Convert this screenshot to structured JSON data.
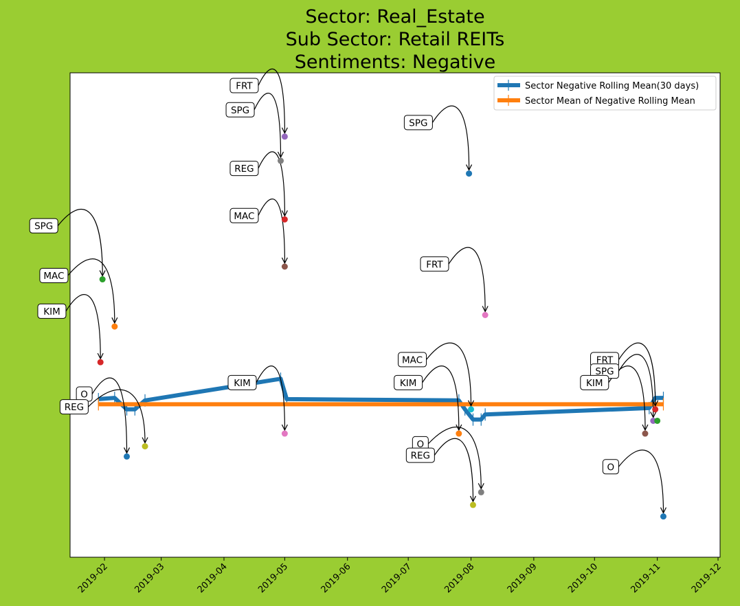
{
  "chart_data": {
    "type": "line",
    "title": [
      "Sector:  Real_Estate",
      "Sub Sector:  Retail REITs",
      "Sentiments:  Negative"
    ],
    "x_tick_labels": [
      "2019-02",
      "2019-03",
      "2019-04",
      "2019-05",
      "2019-06",
      "2019-07",
      "2019-08",
      "2019-09",
      "2019-10",
      "2019-11",
      "2019-12"
    ],
    "x_ticks": [
      "2019-02-01",
      "2019-03-01",
      "2019-04-01",
      "2019-05-01",
      "2019-06-01",
      "2019-07-01",
      "2019-08-01",
      "2019-09-01",
      "2019-10-01",
      "2019-11-01",
      "2019-12-01"
    ],
    "xlim": [
      "2019-01-15",
      "2019-12-02"
    ],
    "ylim": [
      -0.6,
      1.3
    ],
    "grid": false,
    "legend_position": "top-right",
    "colors": {
      "background": "#9acd32",
      "plot_background": "#ffffff",
      "rolling": "#1f77b4",
      "mean": "#ff7f0e"
    },
    "series": [
      {
        "name": "Sector Negative Rolling Mean(30 days)",
        "color": "#1f77b4",
        "points": [
          [
            "2019-01-29",
            0.02
          ],
          [
            "2019-02-06",
            0.025
          ],
          [
            "2019-02-12",
            -0.02
          ],
          [
            "2019-02-16",
            -0.02
          ],
          [
            "2019-02-21",
            0.015
          ],
          [
            "2019-04-29",
            0.1
          ],
          [
            "2019-05-02",
            0.02
          ],
          [
            "2019-07-26",
            0.015
          ],
          [
            "2019-07-29",
            -0.02
          ],
          [
            "2019-08-02",
            -0.06
          ],
          [
            "2019-08-06",
            -0.06
          ],
          [
            "2019-08-08",
            -0.04
          ],
          [
            "2019-10-28",
            -0.015
          ],
          [
            "2019-10-31",
            0.025
          ],
          [
            "2019-11-04",
            0.025
          ]
        ]
      },
      {
        "name": "Sector Mean of Negative Rolling Mean",
        "color": "#ff7f0e",
        "points": [
          [
            "2019-01-29",
            0.0
          ],
          [
            "2019-11-04",
            0.0
          ]
        ]
      }
    ],
    "scatter_points": [
      {
        "label": "SPG",
        "date": "2019-01-31",
        "value": 0.49,
        "color": "#2ca02c",
        "label_date": "2019-01-02",
        "label_value": 0.7
      },
      {
        "label": "MAC",
        "date": "2019-02-06",
        "value": 0.305,
        "color": "#ff7f0e",
        "label_date": "2019-01-07",
        "label_value": 0.505
      },
      {
        "label": "KIM",
        "date": "2019-01-30",
        "value": 0.165,
        "color": "#d62728",
        "label_date": "2019-01-06",
        "label_value": 0.365
      },
      {
        "label": "O",
        "date": "2019-02-12",
        "value": -0.205,
        "color": "#1f77b4",
        "label_date": "2019-01-22",
        "label_value": 0.04
      },
      {
        "label": "REG",
        "date": "2019-02-21",
        "value": -0.165,
        "color": "#bcbd22",
        "label_date": "2019-01-17",
        "label_value": -0.01
      },
      {
        "label": "FRT",
        "date": "2019-05-01",
        "value": 1.05,
        "color": "#9467bd",
        "label_date": "2019-04-11",
        "label_value": 1.25
      },
      {
        "label": "SPG",
        "date": "2019-04-29",
        "value": 0.955,
        "color": "#7f7f7f",
        "label_date": "2019-04-09",
        "label_value": 1.155
      },
      {
        "label": "REG",
        "date": "2019-05-01",
        "value": 0.725,
        "color": "#d62728",
        "label_date": "2019-04-11",
        "label_value": 0.925
      },
      {
        "label": "MAC",
        "date": "2019-05-01",
        "value": 0.54,
        "color": "#8c564b",
        "label_date": "2019-04-11",
        "label_value": 0.74
      },
      {
        "label": "KIM",
        "date": "2019-05-01",
        "value": -0.115,
        "color": "#e377c2",
        "label_date": "2019-04-10",
        "label_value": 0.085
      },
      {
        "label": "SPG",
        "date": "2019-07-31",
        "value": 0.905,
        "color": "#1f77b4",
        "label_date": "2019-07-06",
        "label_value": 1.105
      },
      {
        "label": "FRT",
        "date": "2019-08-08",
        "value": 0.35,
        "color": "#e377c2",
        "label_date": "2019-07-14",
        "label_value": 0.55
      },
      {
        "label": "MAC",
        "date": "2019-08-01",
        "value": -0.02,
        "color": "#17becf",
        "label_date": "2019-07-03",
        "label_value": 0.175
      },
      {
        "label": "KIM",
        "date": "2019-07-26",
        "value": -0.115,
        "color": "#ff7f0e",
        "label_date": "2019-07-01",
        "label_value": 0.085
      },
      {
        "label": "O",
        "date": "2019-08-06",
        "value": -0.345,
        "color": "#7f7f7f",
        "label_date": "2019-07-07",
        "label_value": -0.155
      },
      {
        "label": "REG",
        "date": "2019-08-02",
        "value": -0.395,
        "color": "#bcbd22",
        "label_date": "2019-07-07",
        "label_value": -0.2
      },
      {
        "label": "FRT",
        "date": "2019-10-31",
        "value": -0.02,
        "color": "#d62728",
        "label_date": "2019-10-06",
        "label_value": 0.175
      },
      {
        "label": "SPG",
        "date": "2019-10-30",
        "value": -0.065,
        "color": "#9467bd",
        "label_date": "2019-10-06",
        "label_value": 0.13
      },
      {
        "label": "KIM",
        "date": "2019-10-26",
        "value": -0.115,
        "color": "#8c564b",
        "label_date": "2019-10-01",
        "label_value": 0.085
      },
      {
        "label": "O",
        "date": "2019-11-04",
        "value": -0.44,
        "color": "#1f77b4",
        "label_date": "2019-10-09",
        "label_value": -0.245
      },
      {
        "label": "",
        "date": "2019-11-01",
        "value": -0.065,
        "color": "#2ca02c",
        "label_date": "2019-10-09",
        "label_value": 0.13
      }
    ]
  }
}
